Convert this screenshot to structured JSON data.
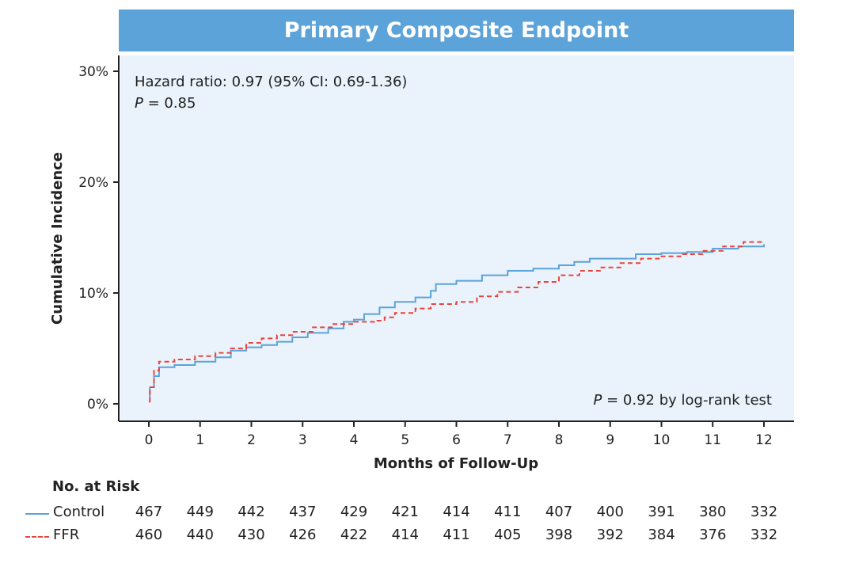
{
  "title": "Primary Composite Endpoint",
  "annotations": {
    "hr_line": "Hazard ratio: 0.97 (95% CI: 0.69-1.36)",
    "p_letter": "P",
    "p_value": " = 0.85",
    "logrank_letter": "P",
    "logrank_text": " = 0.92 by log-rank test"
  },
  "risk_table": {
    "title": "No. at Risk",
    "rows": [
      {
        "name": "Control",
        "values": [
          "467",
          "449",
          "442",
          "437",
          "429",
          "421",
          "414",
          "411",
          "407",
          "400",
          "391",
          "380",
          "332"
        ]
      },
      {
        "name": "FFR",
        "values": [
          "460",
          "440",
          "430",
          "426",
          "422",
          "414",
          "411",
          "405",
          "398",
          "392",
          "384",
          "376",
          "332"
        ]
      }
    ]
  },
  "chart_data": {
    "type": "line",
    "xlabel": "Months of Follow-Up",
    "ylabel": "Cumulative Incidence",
    "xlim": [
      0,
      12
    ],
    "ylim": [
      0,
      30
    ],
    "xticks": [
      "0",
      "1",
      "2",
      "3",
      "4",
      "5",
      "6",
      "7",
      "8",
      "9",
      "10",
      "11",
      "12"
    ],
    "yticks": [
      "0%",
      "10%",
      "20%",
      "30%"
    ],
    "grid": false,
    "series": [
      {
        "name": "Control",
        "color": "#5ba3d9",
        "dash": "solid",
        "x": [
          0,
          0.02,
          0.1,
          0.2,
          0.5,
          0.9,
          1.3,
          1.6,
          1.9,
          2.2,
          2.5,
          2.8,
          3.1,
          3.5,
          3.8,
          4.0,
          4.2,
          4.5,
          4.8,
          5.2,
          5.5,
          5.6,
          6.0,
          6.5,
          7.0,
          7.5,
          8.0,
          8.3,
          8.6,
          9.0,
          9.5,
          10.0,
          10.5,
          11.0,
          11.5,
          12.0
        ],
        "y": [
          0.5,
          1.5,
          2.5,
          3.3,
          3.5,
          3.8,
          4.2,
          4.8,
          5.1,
          5.3,
          5.6,
          6.0,
          6.4,
          6.8,
          7.4,
          7.6,
          8.1,
          8.7,
          9.2,
          9.6,
          10.2,
          10.8,
          11.1,
          11.6,
          12.0,
          12.2,
          12.5,
          12.8,
          13.1,
          13.1,
          13.5,
          13.6,
          13.7,
          14.0,
          14.2,
          14.4
        ]
      },
      {
        "name": "FFR",
        "color": "#e8453c",
        "dash": "dashed",
        "x": [
          0,
          0.02,
          0.1,
          0.2,
          0.5,
          0.9,
          1.3,
          1.6,
          1.9,
          2.2,
          2.5,
          2.8,
          3.2,
          3.6,
          4.0,
          4.4,
          4.6,
          4.8,
          5.2,
          5.5,
          6.0,
          6.4,
          6.8,
          7.2,
          7.6,
          8.0,
          8.4,
          8.8,
          9.2,
          9.6,
          10.0,
          10.4,
          10.8,
          11.2,
          11.6,
          12.0
        ],
        "y": [
          0.2,
          1.5,
          3.0,
          3.8,
          4.0,
          4.3,
          4.6,
          5.0,
          5.5,
          5.9,
          6.2,
          6.5,
          6.9,
          7.2,
          7.4,
          7.5,
          7.8,
          8.2,
          8.6,
          9.0,
          9.2,
          9.7,
          10.1,
          10.5,
          11.0,
          11.6,
          12.0,
          12.3,
          12.7,
          13.1,
          13.3,
          13.5,
          13.8,
          14.2,
          14.6,
          14.7
        ]
      }
    ]
  }
}
